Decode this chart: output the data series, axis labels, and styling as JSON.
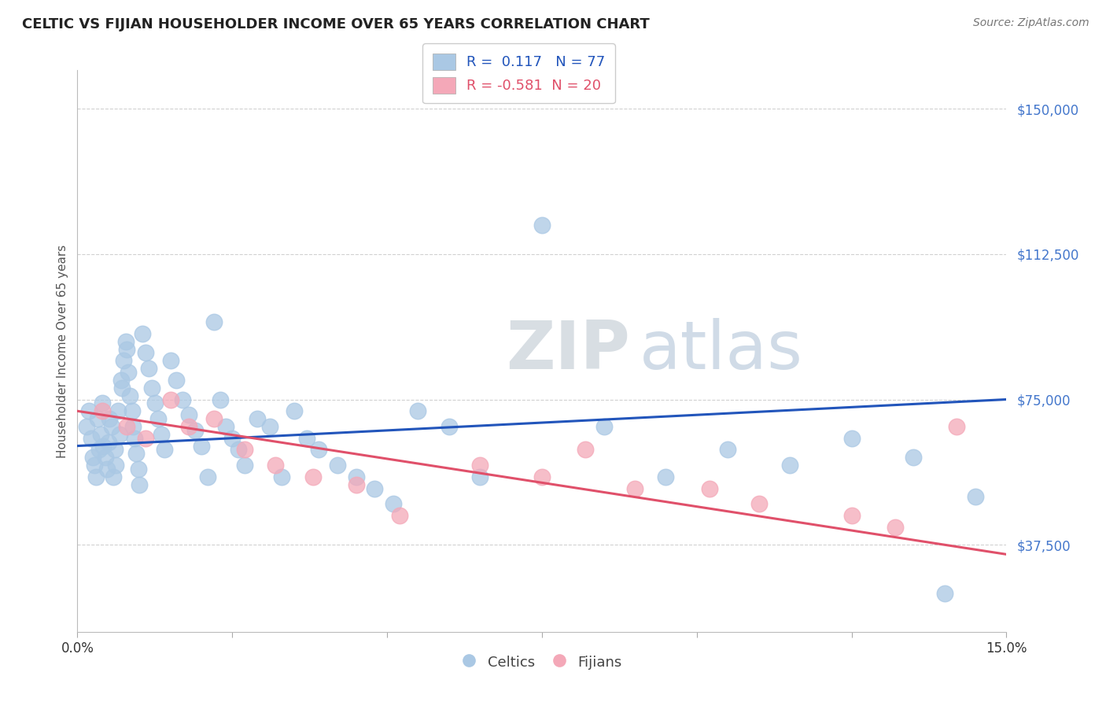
{
  "title": "CELTIC VS FIJIAN HOUSEHOLDER INCOME OVER 65 YEARS CORRELATION CHART",
  "source": "Source: ZipAtlas.com",
  "ylabel": "Householder Income Over 65 years",
  "xmin": 0.0,
  "xmax": 15.0,
  "ymin": 15000,
  "ymax": 160000,
  "yticks": [
    37500,
    75000,
    112500,
    150000
  ],
  "ytick_labels": [
    "$37,500",
    "$75,000",
    "$112,500",
    "$150,000"
  ],
  "xticks": [
    0.0,
    2.5,
    5.0,
    7.5,
    10.0,
    12.5,
    15.0
  ],
  "celtic_color": "#aac8e4",
  "fijian_color": "#f4a8b8",
  "celtic_line_color": "#2255bb",
  "fijian_line_color": "#e0506a",
  "r_celtic": 0.117,
  "n_celtic": 77,
  "r_fijian": -0.581,
  "n_fijian": 20,
  "watermark_zip": "ZIP",
  "watermark_atlas": "atlas",
  "background_color": "#ffffff",
  "celtic_scatter_x": [
    0.15,
    0.18,
    0.22,
    0.25,
    0.28,
    0.3,
    0.32,
    0.35,
    0.38,
    0.4,
    0.42,
    0.45,
    0.48,
    0.5,
    0.52,
    0.55,
    0.58,
    0.6,
    0.62,
    0.65,
    0.68,
    0.7,
    0.72,
    0.75,
    0.78,
    0.8,
    0.82,
    0.85,
    0.88,
    0.9,
    0.92,
    0.95,
    0.98,
    1.0,
    1.05,
    1.1,
    1.15,
    1.2,
    1.25,
    1.3,
    1.35,
    1.4,
    1.5,
    1.6,
    1.7,
    1.8,
    1.9,
    2.0,
    2.1,
    2.2,
    2.3,
    2.4,
    2.5,
    2.6,
    2.7,
    2.9,
    3.1,
    3.3,
    3.5,
    3.7,
    3.9,
    4.2,
    4.5,
    4.8,
    5.1,
    5.5,
    6.0,
    6.5,
    7.5,
    8.5,
    9.5,
    10.5,
    11.5,
    12.5,
    13.5,
    14.0,
    14.5
  ],
  "celtic_scatter_y": [
    68000,
    72000,
    65000,
    60000,
    58000,
    55000,
    70000,
    62000,
    66000,
    74000,
    63000,
    60000,
    57000,
    64000,
    70000,
    68000,
    55000,
    62000,
    58000,
    72000,
    66000,
    80000,
    78000,
    85000,
    90000,
    88000,
    82000,
    76000,
    72000,
    68000,
    65000,
    61000,
    57000,
    53000,
    92000,
    87000,
    83000,
    78000,
    74000,
    70000,
    66000,
    62000,
    85000,
    80000,
    75000,
    71000,
    67000,
    63000,
    55000,
    95000,
    75000,
    68000,
    65000,
    62000,
    58000,
    70000,
    68000,
    55000,
    72000,
    65000,
    62000,
    58000,
    55000,
    52000,
    48000,
    72000,
    68000,
    55000,
    120000,
    68000,
    55000,
    62000,
    58000,
    65000,
    60000,
    25000,
    50000
  ],
  "fijian_scatter_x": [
    0.4,
    0.8,
    1.1,
    1.5,
    1.8,
    2.2,
    2.7,
    3.2,
    3.8,
    4.5,
    5.2,
    6.5,
    7.5,
    8.2,
    9.0,
    10.2,
    11.0,
    12.5,
    13.2,
    14.2
  ],
  "fijian_scatter_y": [
    72000,
    68000,
    65000,
    75000,
    68000,
    70000,
    62000,
    58000,
    55000,
    53000,
    45000,
    58000,
    55000,
    62000,
    52000,
    52000,
    48000,
    45000,
    42000,
    68000
  ]
}
